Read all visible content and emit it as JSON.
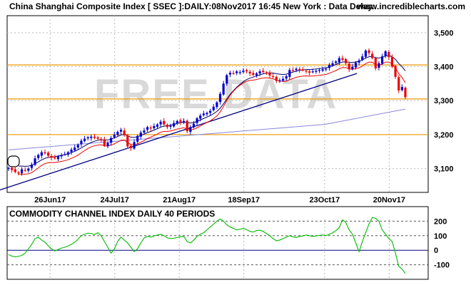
{
  "header": {
    "title": "China Shanghai Composite Index [ SSEC ]:DAILY:08Nov2017 16:45 New York : Data Delay..",
    "site": "www.incrediblecharts.com"
  },
  "watermark": "FREE DATA",
  "colors": {
    "candle_up": "#0000cc",
    "candle_down": "#ee0000",
    "ema_fast": "#ee0000",
    "ema_slow": "#000066",
    "ma_long": "#8888dd",
    "trendline": "#000080",
    "hline": "#ee9900",
    "cci": "#00bb00",
    "grid": "#bbbbbb"
  },
  "chart_data": [
    {
      "type": "candlestick",
      "title": "China Shanghai Composite Index [ SSEC ]:DAILY:08Nov2017 16:45 New York : Data Delay..",
      "x_ticks": [
        "26Jun17",
        "24Jul17",
        "21Aug17",
        "18Sep17",
        "23Oct17",
        "20Nov17"
      ],
      "y_ticks": [
        "3,100",
        "3,200",
        "3,300",
        "3,400",
        "3,500"
      ],
      "ylim": [
        3030,
        3550
      ],
      "grid": true,
      "horizontal_lines": [
        3200,
        3305,
        3405
      ],
      "trendline": [
        {
          "x": "01Jun17",
          "y": 3030
        },
        {
          "x": "06Nov17",
          "y": 3380
        }
      ],
      "closes": [
        3102,
        3096,
        3090,
        3086,
        3098,
        3094,
        3100,
        3112,
        3130,
        3140,
        3148,
        3145,
        3138,
        3132,
        3130,
        3136,
        3140,
        3142,
        3148,
        3156,
        3162,
        3170,
        3182,
        3188,
        3192,
        3194,
        3190,
        3188,
        3185,
        3168,
        3176,
        3190,
        3200,
        3208,
        3214,
        3198,
        3165,
        3160,
        3178,
        3196,
        3206,
        3212,
        3222,
        3218,
        3225,
        3230,
        3238,
        3230,
        3222,
        3226,
        3234,
        3240,
        3236,
        3240,
        3210,
        3222,
        3232,
        3248,
        3256,
        3262,
        3264,
        3270,
        3282,
        3295,
        3320,
        3350,
        3375,
        3382,
        3380,
        3386,
        3384,
        3388,
        3386,
        3380,
        3376,
        3380,
        3386,
        3384,
        3382,
        3374,
        3370,
        3358,
        3360,
        3364,
        3372,
        3390,
        3388,
        3394,
        3390,
        3390,
        3386,
        3382,
        3386,
        3388,
        3390,
        3392,
        3394,
        3405,
        3410,
        3415,
        3425,
        3420,
        3410,
        3392,
        3400,
        3412,
        3418,
        3430,
        3447,
        3440,
        3425,
        3395,
        3410,
        3430,
        3445,
        3428,
        3400,
        3370,
        3330,
        3340,
        3310
      ],
      "ma_long": [
        {
          "x": "08Jun17",
          "y": 3155
        },
        {
          "x": "23Oct17",
          "y": 3230
        },
        {
          "x": "27Nov17",
          "y": 3275
        }
      ]
    },
    {
      "type": "line",
      "title": "COMMODITY CHANNEL INDEX DAILY 40 PERIODS",
      "y_ticks": [
        "200",
        "100",
        "0",
        "-100"
      ],
      "ylim": [
        -200,
        300
      ],
      "grid": true,
      "reference_lines": [
        200,
        100,
        0,
        -100
      ],
      "values": [
        -30,
        -40,
        -45,
        -42,
        -35,
        -20,
        10,
        40,
        80,
        90,
        70,
        55,
        30,
        10,
        -5,
        5,
        15,
        20,
        30,
        40,
        55,
        75,
        100,
        110,
        118,
        115,
        108,
        120,
        100,
        60,
        20,
        -20,
        10,
        60,
        90,
        70,
        50,
        20,
        -10,
        10,
        50,
        85,
        95,
        90,
        98,
        105,
        110,
        100,
        85,
        80,
        82,
        88,
        92,
        95,
        60,
        50,
        70,
        95,
        110,
        120,
        140,
        160,
        180,
        200,
        215,
        200,
        175,
        160,
        150,
        140,
        145,
        150,
        142,
        130,
        125,
        135,
        138,
        130,
        115,
        100,
        80,
        65,
        70,
        80,
        90,
        100,
        92,
        88,
        95,
        98,
        105,
        100,
        95,
        98,
        102,
        105,
        100,
        110,
        120,
        135,
        155,
        210,
        190,
        140,
        110,
        50,
        -10,
        60,
        120,
        180,
        225,
        220,
        200,
        140,
        110,
        80,
        60,
        -20,
        -110,
        -130,
        -160
      ]
    }
  ]
}
